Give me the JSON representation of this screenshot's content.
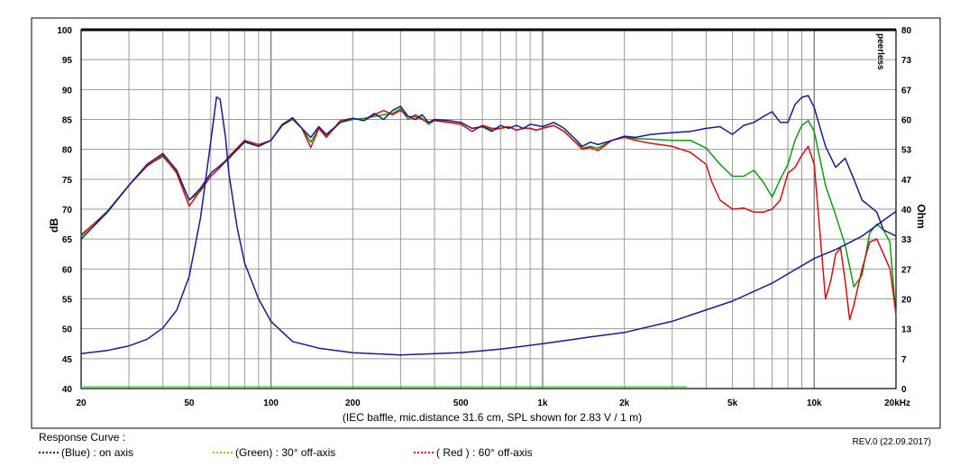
{
  "chart_data": {
    "type": "line",
    "xlabel": "(IEC baffle, mic.distance 31.6 cm, SPL shown for 2.83 V / 1 m)",
    "ylabel": "dB",
    "y2label": "Ohm",
    "watermark": "peerless",
    "xscale": "log",
    "xlim": [
      20,
      20000
    ],
    "ylim": [
      40,
      100
    ],
    "y2lim": [
      0,
      80
    ],
    "grid": true,
    "x_tick_labels": [
      {
        "value": 20,
        "label": "20"
      },
      {
        "value": 50,
        "label": "50"
      },
      {
        "value": 100,
        "label": "100"
      },
      {
        "value": 200,
        "label": "200"
      },
      {
        "value": 500,
        "label": "500"
      },
      {
        "value": 1000,
        "label": "1k"
      },
      {
        "value": 2000,
        "label": "2k"
      },
      {
        "value": 5000,
        "label": "5k"
      },
      {
        "value": 10000,
        "label": "10k"
      },
      {
        "value": 20000,
        "label": "20kHz"
      }
    ],
    "y_ticks": [
      100,
      95,
      90,
      85,
      80,
      75,
      70,
      65,
      60,
      55,
      50,
      45,
      40
    ],
    "y2_ticks": [
      80,
      73,
      67,
      60,
      53,
      47,
      40,
      33,
      27,
      20,
      13,
      7,
      0
    ],
    "series": [
      {
        "name": "(Blue) : on axis",
        "color": "#1a1a8c",
        "axis": "left",
        "x": [
          20,
          25,
          30,
          35,
          40,
          45,
          50,
          55,
          60,
          65,
          70,
          80,
          90,
          100,
          110,
          120,
          130,
          140,
          150,
          160,
          180,
          200,
          220,
          240,
          260,
          280,
          300,
          320,
          340,
          360,
          380,
          400,
          450,
          500,
          550,
          600,
          650,
          700,
          750,
          800,
          850,
          900,
          950,
          1000,
          1100,
          1200,
          1300,
          1400,
          1500,
          1600,
          1800,
          2000,
          2200,
          2500,
          3000,
          3500,
          4000,
          4500,
          5000,
          5500,
          6000,
          6500,
          7000,
          7500,
          8000,
          8500,
          9000,
          9500,
          10000,
          11000,
          12000,
          13000,
          14000,
          15000,
          16000,
          17000,
          18000,
          19000,
          20000
        ],
        "values": [
          65,
          69.5,
          74,
          77.5,
          79.3,
          76.5,
          71.5,
          73.5,
          76,
          77.3,
          78.5,
          81.3,
          80.5,
          81.5,
          84,
          85.3,
          83.5,
          82,
          83.8,
          82.5,
          84.5,
          85.2,
          84.8,
          86,
          85,
          86.5,
          87.2,
          85.5,
          85,
          85.8,
          84.5,
          85,
          84.8,
          84.5,
          83.5,
          83.8,
          83,
          84,
          83.5,
          84,
          83.5,
          84.2,
          84,
          83.8,
          84.5,
          83.5,
          82,
          80.5,
          81.2,
          80.8,
          81.5,
          82.2,
          82,
          82.5,
          82.8,
          83,
          83.5,
          83.8,
          82.5,
          84,
          84.5,
          85.5,
          86.3,
          84.5,
          84.5,
          87.5,
          88.7,
          89,
          87,
          80.5,
          77,
          78.5,
          75,
          71.5,
          70.5,
          69.5,
          66.5,
          66,
          65.5
        ]
      },
      {
        "name": "(Green) : 30° off-axis",
        "color": "#119911",
        "axis": "left",
        "x": [
          20,
          25,
          30,
          35,
          40,
          45,
          50,
          55,
          60,
          65,
          70,
          80,
          90,
          100,
          110,
          120,
          130,
          140,
          150,
          160,
          180,
          200,
          220,
          240,
          260,
          280,
          300,
          320,
          340,
          360,
          380,
          400,
          450,
          500,
          550,
          600,
          650,
          700,
          750,
          800,
          850,
          900,
          950,
          1000,
          1100,
          1200,
          1300,
          1400,
          1500,
          1600,
          1800,
          2000,
          2200,
          2500,
          3000,
          3500,
          4000,
          4500,
          5000,
          5500,
          6000,
          6500,
          7000,
          7500,
          8000,
          8500,
          9000,
          9500,
          10000,
          11000,
          12000,
          13000,
          14000,
          15000,
          16000,
          17000,
          18000,
          19000,
          20000
        ],
        "values": [
          65.5,
          69.7,
          74,
          77.3,
          78.8,
          76.2,
          71.5,
          73,
          75.5,
          77,
          78.5,
          81.2,
          80.5,
          81.5,
          84,
          85,
          83.5,
          81.2,
          83.5,
          82.2,
          84.5,
          85,
          85.2,
          85.5,
          85.8,
          86,
          86.8,
          85,
          85.8,
          85.2,
          84.2,
          84.8,
          84.5,
          84.2,
          83,
          84,
          83.2,
          83.5,
          83.8,
          83.2,
          83.5,
          83.5,
          83.2,
          83.5,
          84,
          83,
          81.5,
          80.2,
          80.5,
          80.2,
          81.5,
          82,
          81.8,
          81.7,
          81.5,
          81.5,
          80.2,
          77.5,
          75.5,
          75.5,
          76.5,
          74.5,
          72,
          75,
          77.5,
          81.5,
          84,
          84.8,
          83,
          74,
          69,
          64,
          57,
          59,
          66,
          67.5,
          66.5,
          64.5,
          52
        ]
      },
      {
        "name": "( Red ) : 60° off-axis",
        "color": "#cc1111",
        "axis": "left",
        "x": [
          20,
          25,
          30,
          35,
          40,
          45,
          50,
          55,
          60,
          65,
          70,
          80,
          90,
          100,
          110,
          120,
          130,
          140,
          150,
          160,
          180,
          200,
          220,
          240,
          260,
          280,
          300,
          320,
          340,
          360,
          380,
          400,
          450,
          500,
          550,
          600,
          650,
          700,
          750,
          800,
          850,
          900,
          950,
          1000,
          1100,
          1200,
          1300,
          1400,
          1500,
          1600,
          1800,
          2000,
          2200,
          2500,
          3000,
          3500,
          4000,
          4200,
          4500,
          5000,
          5500,
          6000,
          6500,
          7000,
          7500,
          8000,
          8500,
          9000,
          9500,
          10000,
          10500,
          11000,
          11500,
          12000,
          12500,
          13000,
          13500,
          14000,
          15000,
          16000,
          17000,
          18000,
          19000,
          20000
        ],
        "values": [
          65.7,
          69.5,
          74,
          77.2,
          79,
          76,
          70.5,
          73.2,
          75.5,
          77,
          78.8,
          81.5,
          80.8,
          81.5,
          84.2,
          85.2,
          83.5,
          80.3,
          83.5,
          82,
          84.8,
          85.2,
          84.8,
          85.8,
          86.5,
          85.8,
          86.5,
          85.5,
          85.5,
          85,
          84.5,
          84.8,
          84.5,
          84.2,
          83,
          84,
          83.5,
          83.5,
          83.8,
          83.2,
          83.5,
          83.5,
          83.2,
          83.5,
          84,
          83,
          81.5,
          80,
          80.3,
          79.8,
          81.5,
          82,
          81.5,
          81,
          80.5,
          79.5,
          77.5,
          74.5,
          71.5,
          70,
          70.2,
          69.5,
          69.5,
          70,
          71.5,
          76,
          77,
          79,
          80.5,
          77.5,
          66,
          55,
          58,
          62.5,
          63.5,
          58,
          51.5,
          54,
          60,
          64.5,
          65,
          62.5,
          60,
          52.5
        ]
      },
      {
        "name": "Impedance",
        "color": "#1a1a8c",
        "axis": "right",
        "x": [
          20,
          25,
          30,
          35,
          40,
          45,
          50,
          55,
          60,
          63,
          65,
          68,
          70,
          75,
          80,
          90,
          100,
          120,
          150,
          200,
          300,
          500,
          700,
          1000,
          1500,
          2000,
          3000,
          5000,
          7000,
          10000,
          12000,
          15000,
          18000,
          20000
        ],
        "values": [
          7.8,
          8.5,
          9.5,
          11,
          13.5,
          17.5,
          25,
          38,
          55,
          65,
          64.5,
          56,
          48,
          36,
          28,
          20,
          15,
          10.5,
          9,
          8,
          7.5,
          8,
          8.8,
          10,
          11.5,
          12.5,
          15,
          19.5,
          23.5,
          29,
          31,
          34,
          37.5,
          39.5
        ]
      }
    ]
  },
  "footer": {
    "title": "Response Curve :",
    "rev": "REV.0 (22.09.2017)",
    "legend": [
      {
        "label": "(Blue)  : on axis",
        "color": "#1a1a8c"
      },
      {
        "label": "(Green) : 30° off-axis",
        "color": "#b9b900"
      },
      {
        "label": "( Red ) : 60° off-axis",
        "color": "#cc1111"
      }
    ]
  }
}
